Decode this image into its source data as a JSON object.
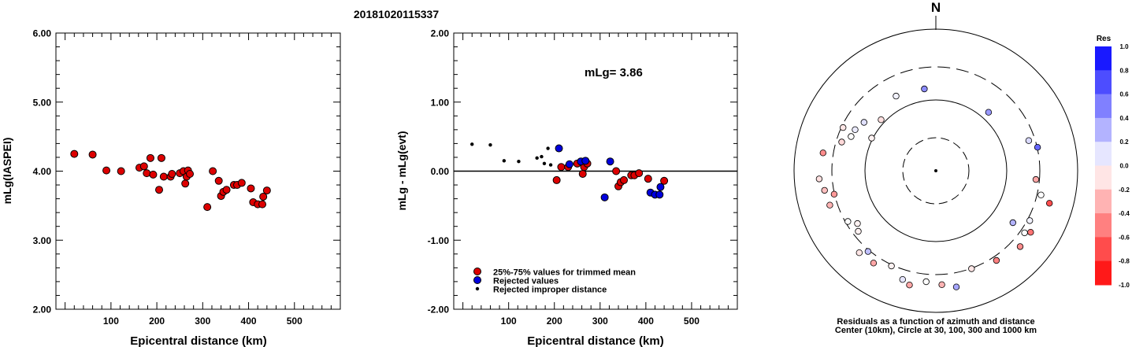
{
  "event_id": "20181020115337",
  "chart_data": [
    {
      "type": "scatter",
      "title": "",
      "xlabel": "Epicentral distance (km)",
      "ylabel": "mLg(IASPEI)",
      "xlim": [
        -20,
        600
      ],
      "ylim": [
        2.0,
        6.0
      ],
      "xticks": [
        "100",
        "200",
        "300",
        "500",
        "400"
      ],
      "xtick_values": [
        100,
        200,
        300,
        500,
        400
      ],
      "yticks": [
        "2.00",
        "3.00",
        "4.00",
        "5.00",
        "6.00"
      ],
      "ytick_values": [
        2.0,
        3.0,
        4.0,
        5.0,
        6.0
      ],
      "series": [
        {
          "color": "#dd0000",
          "points": [
            [
              20,
              4.25
            ],
            [
              60,
              4.24
            ],
            [
              90,
              4.01
            ],
            [
              122,
              4.0
            ],
            [
              162,
              4.05
            ],
            [
              172,
              4.07
            ],
            [
              178,
              3.97
            ],
            [
              186,
              4.19
            ],
            [
              192,
              3.95
            ],
            [
              205,
              3.73
            ],
            [
              210,
              4.19
            ],
            [
              215,
              3.92
            ],
            [
              230,
              3.92
            ],
            [
              233,
              3.96
            ],
            [
              250,
              3.97
            ],
            [
              258,
              4.0
            ],
            [
              262,
              3.82
            ],
            [
              265,
              3.92
            ],
            [
              268,
              4.01
            ],
            [
              272,
              3.96
            ],
            [
              310,
              3.48
            ],
            [
              322,
              4.0
            ],
            [
              335,
              3.86
            ],
            [
              340,
              3.64
            ],
            [
              345,
              3.7
            ],
            [
              352,
              3.73
            ],
            [
              368,
              3.8
            ],
            [
              375,
              3.8
            ],
            [
              385,
              3.83
            ],
            [
              405,
              3.75
            ],
            [
              410,
              3.55
            ],
            [
              420,
              3.52
            ],
            [
              430,
              3.52
            ],
            [
              432,
              3.63
            ],
            [
              440,
              3.72
            ]
          ]
        }
      ]
    },
    {
      "type": "scatter",
      "title": "",
      "xlabel": "Epicentral distance (km)",
      "ylabel": "mLg - mLg(evt)",
      "xlim": [
        -20,
        600
      ],
      "ylim": [
        -2.0,
        2.0
      ],
      "xticks": [
        "100",
        "200",
        "300",
        "500",
        "400"
      ],
      "xtick_values": [
        100,
        200,
        300,
        500,
        400
      ],
      "yticks": [
        "-2.00",
        "-1.00",
        "0.00",
        "1.00",
        "2.00"
      ],
      "ytick_values": [
        -2.0,
        -1.0,
        0.0,
        1.0,
        2.0
      ],
      "annotation": "mLg= 3.86",
      "legend": "bottom-left",
      "series": [
        {
          "name": "25%-75% values for trimmed mean",
          "color": "#dd0000",
          "points": [
            [
              205,
              -0.13
            ],
            [
              215,
              0.06
            ],
            [
              230,
              0.06
            ],
            [
              250,
              0.11
            ],
            [
              262,
              -0.04
            ],
            [
              265,
              0.06
            ],
            [
              272,
              0.11
            ],
            [
              335,
              0.0
            ],
            [
              340,
              -0.22
            ],
            [
              345,
              -0.16
            ],
            [
              352,
              -0.13
            ],
            [
              368,
              -0.06
            ],
            [
              375,
              -0.06
            ],
            [
              385,
              -0.03
            ],
            [
              405,
              -0.11
            ],
            [
              440,
              -0.14
            ]
          ]
        },
        {
          "name": "Rejected values",
          "color": "#0000dd",
          "points": [
            [
              210,
              0.33
            ],
            [
              233,
              0.1
            ],
            [
              258,
              0.14
            ],
            [
              268,
              0.15
            ],
            [
              310,
              -0.38
            ],
            [
              322,
              0.14
            ],
            [
              410,
              -0.31
            ],
            [
              420,
              -0.34
            ],
            [
              430,
              -0.34
            ],
            [
              432,
              -0.23
            ]
          ]
        },
        {
          "name": "Rejected improper distance",
          "color": "#000000",
          "points": [
            [
              20,
              0.39
            ],
            [
              60,
              0.38
            ],
            [
              90,
              0.15
            ],
            [
              122,
              0.14
            ],
            [
              162,
              0.19
            ],
            [
              172,
              0.21
            ],
            [
              178,
              0.11
            ],
            [
              186,
              0.33
            ],
            [
              192,
              0.09
            ]
          ]
        }
      ]
    },
    {
      "type": "scatter",
      "title": "",
      "north_label": "N",
      "caption_line1": "Residuals as a function of azimuth and distance",
      "caption_line2": "Center (10km), Circle at 30, 100, 300 and 1000 km",
      "colorbar_label": "Res",
      "colorbar_ticks": [
        "1.0",
        "0.8",
        "0.6",
        "0.4",
        "0.2",
        "0.0",
        "-0.2",
        "-0.4",
        "-0.6",
        "-0.8",
        "-1.0"
      ],
      "colorbar_values": [
        1.0,
        0.8,
        0.6,
        0.4,
        0.2,
        0.0,
        -0.2,
        -0.4,
        -0.6,
        -0.8,
        -1.0
      ],
      "points": [
        [
          -8,
          210,
          0.45
        ],
        [
          42,
          200,
          0.4
        ],
        [
          77,
          265,
          0.6
        ],
        [
          -28,
          215,
          0.05
        ],
        [
          -56,
          220,
          0.12
        ],
        [
          -63,
          230,
          0.08
        ],
        [
          -47,
          190,
          -0.12
        ],
        [
          -63,
          183,
          -0.05
        ],
        [
          -73,
          250,
          -0.15
        ],
        [
          -65,
          260,
          -0.1
        ],
        [
          -68,
          232,
          0.0
        ],
        [
          -81,
          290,
          -0.45
        ],
        [
          -94,
          297,
          -0.12
        ],
        [
          -100,
          287,
          -0.25
        ],
        [
          -108,
          283,
          -0.3
        ],
        [
          -103,
          265,
          -0.4
        ],
        [
          -120,
          258,
          0.0
        ],
        [
          -124,
          240,
          -0.05
        ],
        [
          -128,
          250,
          -0.05
        ],
        [
          -137,
          285,
          -0.1
        ],
        [
          -155,
          267,
          -0.05
        ],
        [
          -140,
          268,
          0.25
        ],
        [
          -146,
          283,
          -0.35
        ],
        [
          -163,
          289,
          0.1
        ],
        [
          -167,
          298,
          -0.35
        ],
        [
          -175,
          283,
          0.0
        ],
        [
          177,
          290,
          -0.3
        ],
        [
          170,
          300,
          0.35
        ],
        [
          160,
          265,
          -0.1
        ],
        [
          146,
          275,
          -0.5
        ],
        [
          132,
          288,
          -0.45
        ],
        [
          124,
          236,
          0.3
        ],
        [
          125,
          275,
          0.0
        ],
        [
          118,
          270,
          0.05
        ],
        [
          106,
          300,
          -0.7
        ],
        [
          103,
          274,
          0.0
        ],
        [
          72,
          248,
          0.15
        ],
        [
          95,
          255,
          -0.35
        ],
        [
          123,
          287,
          -0.55
        ]
      ]
    }
  ]
}
